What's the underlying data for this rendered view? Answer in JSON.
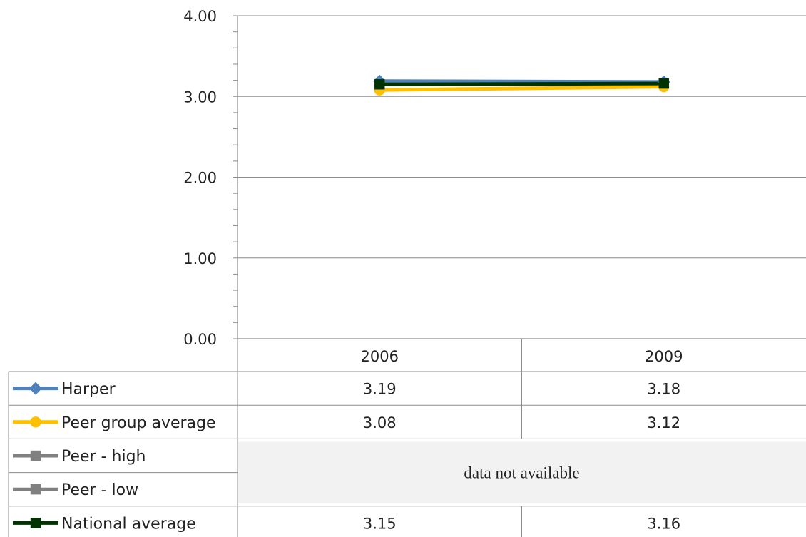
{
  "chart_data": {
    "type": "line",
    "title": "",
    "xlabel": "",
    "ylabel": "",
    "ylim": [
      0,
      4
    ],
    "y_ticks": [
      "0.00",
      "1.00",
      "2.00",
      "3.00",
      "4.00"
    ],
    "y_tick_values": [
      0,
      1,
      2,
      3,
      4
    ],
    "categories": [
      "2006",
      "2009"
    ],
    "grid": true,
    "legend": "data-table",
    "series": [
      {
        "name": "Harper",
        "values": [
          3.19,
          3.18
        ],
        "labels": [
          "3.19",
          "3.18"
        ],
        "color": "#4f81bd",
        "marker": "diamond"
      },
      {
        "name": "Peer group average",
        "values": [
          3.08,
          3.12
        ],
        "labels": [
          "3.08",
          "3.12"
        ],
        "color": "#ffc000",
        "marker": "circle"
      },
      {
        "name": "Peer - high",
        "values": [
          null,
          null
        ],
        "color": "#808080",
        "marker": "square"
      },
      {
        "name": "Peer - low",
        "values": [
          null,
          null
        ],
        "color": "#808080",
        "marker": "square"
      },
      {
        "name": "National average",
        "values": [
          3.15,
          3.16
        ],
        "labels": [
          "3.15",
          "3.16"
        ],
        "color": "#003300",
        "marker": "square"
      }
    ],
    "unavailable_note": "data not available"
  }
}
